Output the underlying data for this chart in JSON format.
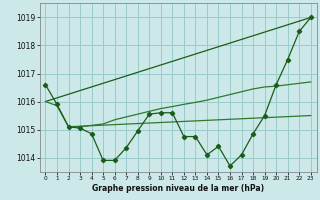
{
  "bg_color": "#cce8e8",
  "grid_color": "#99cccc",
  "line_color_dark": "#1a5c1a",
  "line_color_medium": "#2d7a2d",
  "xlabel": "Graphe pression niveau de la mer (hPa)",
  "ylim": [
    1013.5,
    1019.5
  ],
  "xlim": [
    -0.5,
    23.5
  ],
  "yticks": [
    1014,
    1015,
    1016,
    1017,
    1018,
    1019
  ],
  "xticks": [
    0,
    1,
    2,
    3,
    4,
    5,
    6,
    7,
    8,
    9,
    10,
    11,
    12,
    13,
    14,
    15,
    16,
    17,
    18,
    19,
    20,
    21,
    22,
    23
  ],
  "series1_x": [
    0,
    1,
    2,
    3,
    4,
    5,
    6,
    7,
    8,
    9,
    10,
    11,
    12,
    13,
    14,
    15,
    16,
    17,
    18,
    19,
    20,
    21,
    22,
    23
  ],
  "series1_y": [
    1016.6,
    1015.9,
    1015.1,
    1015.05,
    1014.85,
    1013.9,
    1013.9,
    1014.35,
    1014.95,
    1015.55,
    1015.6,
    1015.6,
    1014.75,
    1014.75,
    1014.1,
    1014.4,
    1013.7,
    1014.1,
    1014.85,
    1015.5,
    1016.6,
    1017.5,
    1018.5,
    1019.0
  ],
  "series2_x": [
    0,
    1,
    2,
    3,
    4,
    5,
    6,
    7,
    8,
    9,
    10,
    11,
    12,
    13,
    14,
    15,
    16,
    17,
    18,
    19,
    20,
    21,
    22,
    23
  ],
  "series2_y": [
    1016.0,
    1015.85,
    1015.1,
    1015.1,
    1015.15,
    1015.2,
    1015.35,
    1015.45,
    1015.55,
    1015.65,
    1015.75,
    1015.82,
    1015.9,
    1015.97,
    1016.05,
    1016.15,
    1016.25,
    1016.35,
    1016.45,
    1016.52,
    1016.55,
    1016.6,
    1016.65,
    1016.7
  ],
  "series3_x": [
    0,
    23
  ],
  "series3_y": [
    1016.0,
    1019.0
  ],
  "series4_x": [
    2,
    23
  ],
  "series4_y": [
    1015.1,
    1015.5
  ],
  "xlabel_fontsize": 5.5,
  "ytick_fontsize": 5.5,
  "xtick_fontsize": 4.2
}
